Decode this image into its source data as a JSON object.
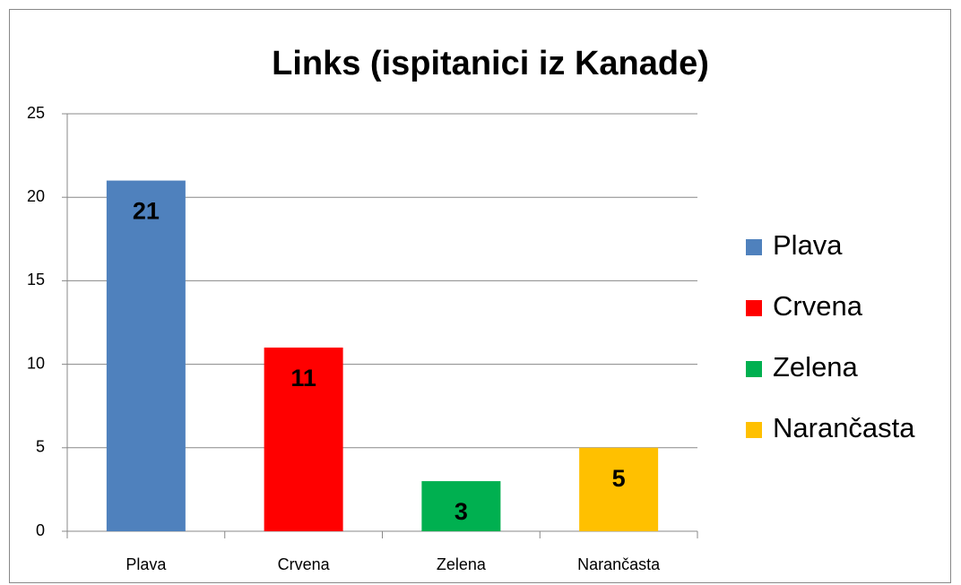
{
  "chart_data": {
    "type": "bar",
    "title": "Links (ispitanici iz Kanade)",
    "categories": [
      "Plava",
      "Crvena",
      "Zelena",
      "Narančasta"
    ],
    "values": [
      21,
      11,
      3,
      5
    ],
    "colors": [
      "#4f81bd",
      "#ff0000",
      "#00b050",
      "#ffc000"
    ],
    "ylim": [
      0,
      25
    ],
    "yticks": [
      0,
      5,
      10,
      15,
      20,
      25
    ],
    "grid": true,
    "legend": "right"
  }
}
